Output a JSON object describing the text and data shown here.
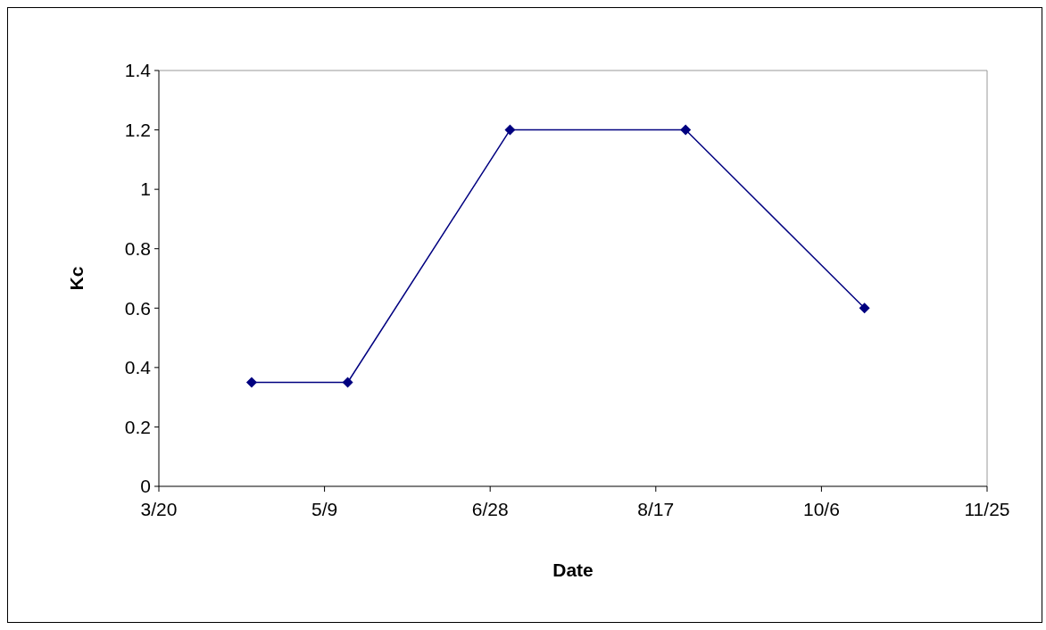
{
  "chart_data": {
    "type": "line",
    "xlabel": "Date",
    "ylabel": "Kc",
    "x": [
      "--04-17",
      "--05-16",
      "--07-04",
      "--08-26",
      "--10-19"
    ],
    "series": [
      {
        "color": "#000080",
        "values": [
          0.35,
          0.35,
          1.2,
          1.2,
          0.6
        ]
      }
    ],
    "xlim": [
      "--03-20",
      "--11-25"
    ],
    "xticks": [
      {
        "value": "--03-20",
        "label": "3/20"
      },
      {
        "value": "--05-09",
        "label": "5/9"
      },
      {
        "value": "--06-28",
        "label": "6/28"
      },
      {
        "value": "--08-17",
        "label": "8/17"
      },
      {
        "value": "--10-06",
        "label": "10/6"
      },
      {
        "value": "--11-25",
        "label": "11/25"
      }
    ],
    "ylim": [
      0,
      1.4
    ],
    "yticks": [
      0,
      0.2,
      0.4,
      0.6,
      0.8,
      1,
      1.2,
      1.4
    ],
    "grid": false,
    "marker": "diamond",
    "line_style": "solid"
  }
}
